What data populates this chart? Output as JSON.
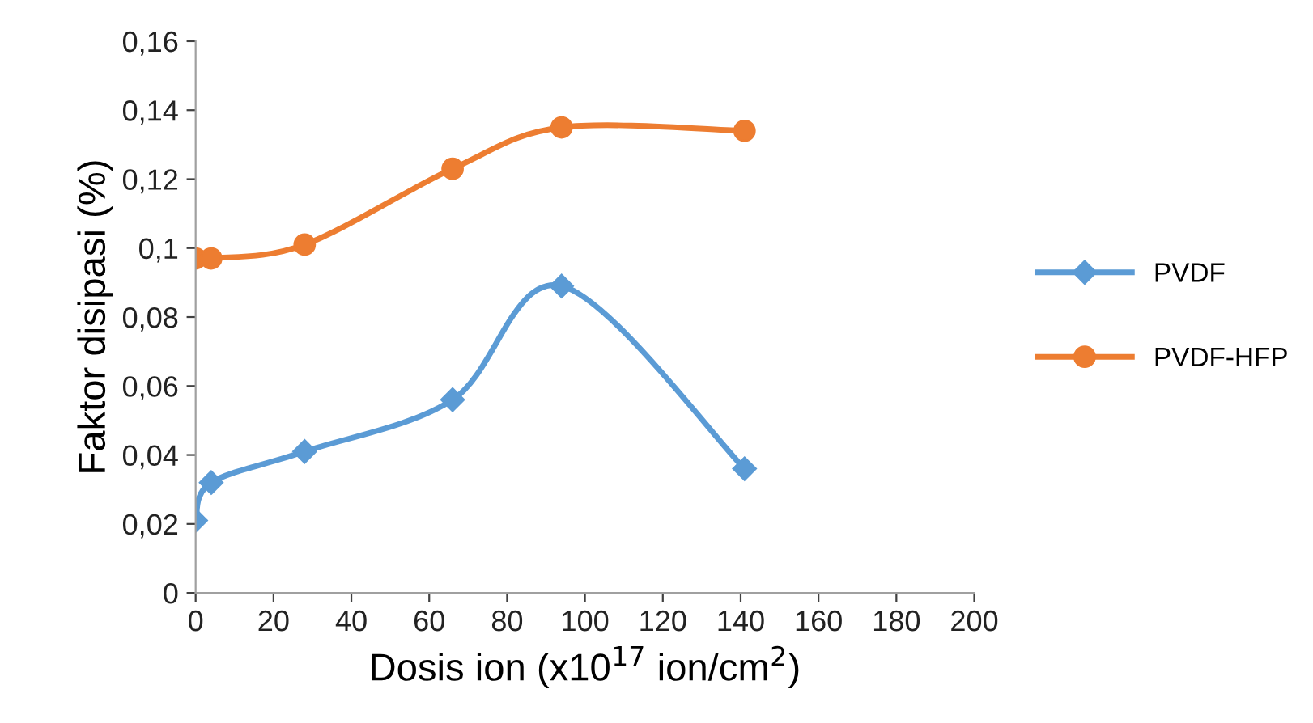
{
  "chart_data": {
    "type": "line",
    "xlabel": "Dosis ion (x10$^{17}$ ion/cm$^{2}$)",
    "ylabel": "Faktor disipasi (%)",
    "x": [
      0,
      4,
      28,
      66,
      94,
      141
    ],
    "series": [
      {
        "name": "PVDF",
        "color": "#5b9bd5",
        "marker": "diamond",
        "values": [
          0.021,
          0.032,
          0.041,
          0.056,
          0.089,
          0.036
        ]
      },
      {
        "name": "PVDF-HFP",
        "color": "#ed7d31",
        "marker": "circle",
        "values": [
          0.097,
          0.097,
          0.101,
          0.123,
          0.135,
          0.134
        ]
      }
    ],
    "xlim": [
      0,
      200
    ],
    "xticks": [
      0,
      20,
      40,
      60,
      80,
      100,
      120,
      140,
      160,
      180,
      200
    ],
    "ylim": [
      0,
      0.16
    ],
    "yticks": [
      {
        "value": 0,
        "label": "0"
      },
      {
        "value": 0.02,
        "label": "0,02"
      },
      {
        "value": 0.04,
        "label": "0,04"
      },
      {
        "value": 0.06,
        "label": "0,06"
      },
      {
        "value": 0.08,
        "label": "0,08"
      },
      {
        "value": 0.1,
        "label": "0,1"
      },
      {
        "value": 0.12,
        "label": "0,12"
      },
      {
        "value": 0.14,
        "label": "0,14"
      },
      {
        "value": 0.16,
        "label": "0,16"
      }
    ],
    "grid": false,
    "legend": "right",
    "line_style": "solid"
  }
}
